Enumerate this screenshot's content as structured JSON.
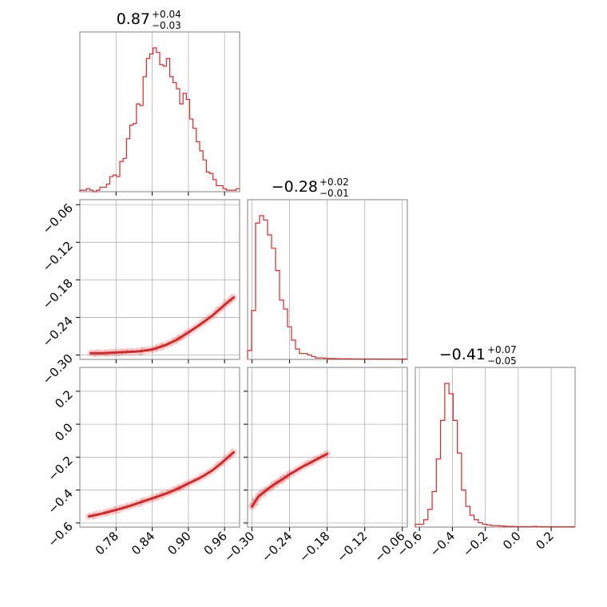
{
  "chart_data": {
    "type": "corner",
    "color": "#d62728",
    "params": [
      {
        "median": "0.87",
        "plus": "+0.04",
        "minus": "−0.03",
        "range": [
          0.72,
          0.985
        ],
        "ticks": [
          0.78,
          0.84,
          0.9,
          0.96
        ],
        "tick_labels": [
          "0.78",
          "0.84",
          "0.90",
          "0.96"
        ]
      },
      {
        "median": "−0.28",
        "plus": "+0.02",
        "minus": "−0.01",
        "range": [
          -0.307,
          -0.052
        ],
        "ticks": [
          -0.3,
          -0.24,
          -0.18,
          -0.12,
          -0.06
        ],
        "tick_labels": [
          "−0.30",
          "−0.24",
          "−0.18",
          "−0.12",
          "−0.06"
        ]
      },
      {
        "median": "−0.41",
        "plus": "+0.07",
        "minus": "−0.05",
        "range": [
          -0.625,
          0.345
        ],
        "ticks": [
          -0.6,
          -0.4,
          -0.2,
          0.0,
          0.2
        ],
        "tick_labels": [
          "−0.6",
          "−0.4",
          "−0.2",
          "0.0",
          "0.2"
        ]
      }
    ],
    "histograms": [
      {
        "bins": [
          0.72,
          0.985
        ],
        "counts": [
          0.01,
          0.01,
          0.02,
          0.01,
          0.0,
          0.01,
          0.03,
          0.03,
          0.05,
          0.1,
          0.11,
          0.1,
          0.2,
          0.22,
          0.35,
          0.44,
          0.45,
          0.58,
          0.57,
          0.76,
          0.88,
          0.91,
          0.95,
          0.92,
          0.84,
          0.83,
          0.88,
          0.76,
          0.72,
          0.68,
          0.58,
          0.65,
          0.61,
          0.48,
          0.42,
          0.33,
          0.27,
          0.21,
          0.13,
          0.12,
          0.08,
          0.04,
          0.04,
          0.02,
          0.01,
          0.01,
          0.01,
          0.02
        ]
      },
      {
        "bins": [
          -0.307,
          -0.052
        ],
        "counts": [
          0.06,
          0.33,
          0.92,
          0.97,
          0.94,
          0.84,
          0.75,
          0.6,
          0.4,
          0.34,
          0.22,
          0.13,
          0.07,
          0.04,
          0.04,
          0.03,
          0.02,
          0.01,
          0.01,
          0.008,
          0.006,
          0.006,
          0.005,
          0.004,
          0.004,
          0.004,
          0.003,
          0.003,
          0.003,
          0.003,
          0.003,
          0.003,
          0.002,
          0.002,
          0.002,
          0.002,
          0.002,
          0.002,
          0.002,
          0.002
        ]
      },
      {
        "bins": [
          -0.625,
          0.345
        ],
        "counts": [
          0.02,
          0.02,
          0.05,
          0.12,
          0.24,
          0.46,
          0.72,
          0.97,
          0.9,
          0.72,
          0.5,
          0.25,
          0.14,
          0.08,
          0.05,
          0.03,
          0.02,
          0.015,
          0.01,
          0.01,
          0.008,
          0.006,
          0.005,
          0.004,
          0.003,
          0.003,
          0.003,
          0.003,
          0.005,
          0.003,
          0.002,
          0.002,
          0.002,
          0.002,
          0.002,
          0.002,
          0.002,
          0.002
        ]
      }
    ],
    "joint_curves": {
      "p1_vs_p0": {
        "x": [
          0.738,
          0.76,
          0.78,
          0.8,
          0.82,
          0.84,
          0.86,
          0.88,
          0.9,
          0.92,
          0.94,
          0.96,
          0.975
        ],
        "y": [
          -0.297,
          -0.297,
          -0.296,
          -0.295,
          -0.294,
          -0.291,
          -0.285,
          -0.276,
          -0.264,
          -0.251,
          -0.237,
          -0.22,
          -0.208
        ]
      },
      "p2_vs_p0": {
        "x": [
          0.735,
          0.76,
          0.78,
          0.8,
          0.82,
          0.84,
          0.86,
          0.88,
          0.9,
          0.92,
          0.94,
          0.96,
          0.975
        ],
        "y": [
          -0.56,
          -0.54,
          -0.52,
          -0.5,
          -0.475,
          -0.45,
          -0.425,
          -0.395,
          -0.36,
          -0.325,
          -0.28,
          -0.22,
          -0.17
        ]
      },
      "p2_vs_p1": {
        "x": [
          -0.3,
          -0.295,
          -0.29,
          -0.28,
          -0.27,
          -0.26,
          -0.25,
          -0.24,
          -0.22,
          -0.2,
          -0.18
        ],
        "y": [
          -0.5,
          -0.47,
          -0.44,
          -0.41,
          -0.38,
          -0.355,
          -0.33,
          -0.305,
          -0.26,
          -0.22,
          -0.18
        ]
      }
    }
  }
}
